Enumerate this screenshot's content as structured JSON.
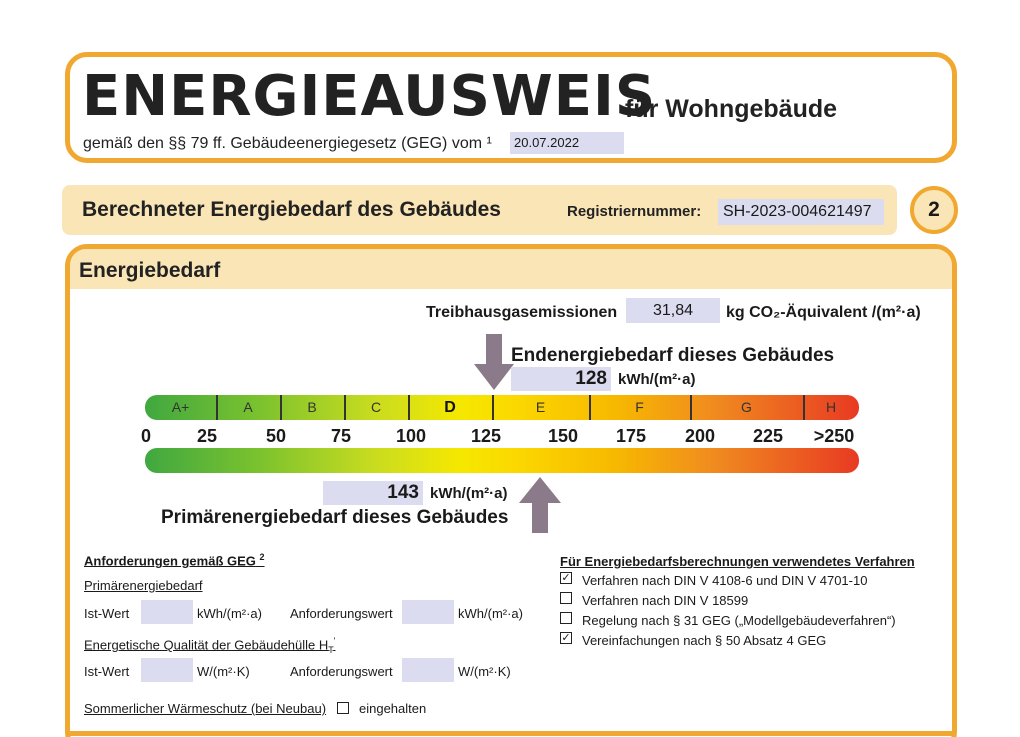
{
  "header": {
    "title": "ENERGIEAUSWEIS",
    "subtitle": "für Wohngebäude",
    "law_line": "gemäß den §§ 79 ff. Gebäudeenergiegesetz (GEG) vom ¹",
    "date": "20.07.2022"
  },
  "section": {
    "title": "Berechneter Energiebedarf des Gebäudes",
    "reg_label": "Registriernummer:",
    "reg_number": "SH-2023-004621497",
    "page_number": "2"
  },
  "panel": {
    "title": "Energiebedarf",
    "ghg_label": "Treibhausgasemissionen",
    "ghg_value": "31,84",
    "ghg_unit": "kg CO₂-Äquivalent /(m²·a)",
    "end_label": "Endenergiebedarf dieses Gebäudes",
    "end_value": "128",
    "end_unit": "kWh/(m²·a)",
    "primary_value": "143",
    "primary_unit": "kWh/(m²·a)",
    "primary_label": "Primärenergiebedarf dieses Gebäudes",
    "classes": [
      "A+",
      "A",
      "B",
      "C",
      "D",
      "E",
      "F",
      "G",
      "H"
    ],
    "active_class": "D",
    "ticks": [
      "0",
      "25",
      "50",
      "75",
      "100",
      "125",
      "150",
      "175",
      "200",
      "225",
      ">250"
    ]
  },
  "requirements": {
    "title": "Anforderungen gemäß GEG",
    "title_sup": "2",
    "pe_title": "Primärenergiebedarf",
    "ist_label": "Ist-Wert",
    "req_label": "Anforderungswert",
    "unit_kwh": "kWh/(m²·a)",
    "ht_title": "Energetische Qualität der Gebäudehülle H",
    "ht_sub": "T",
    "ht_sup": "'",
    "unit_w": "W/(m²·K)",
    "summer_label": "Sommerlicher Wärmeschutz (bei Neubau)",
    "summer_check": "eingehalten"
  },
  "methods": {
    "title": "Für Energiebedarfsberechnungen verwendetes Verfahren",
    "items": [
      {
        "label": "Verfahren nach DIN V 4108-6 und DIN V 4701-10",
        "checked": true
      },
      {
        "label": "Verfahren nach DIN V 18599",
        "checked": false
      },
      {
        "label": "Regelung nach § 31 GEG („Modellgebäudeverfahren“)",
        "checked": false
      },
      {
        "label": "Vereinfachungen nach § 50 Absatz 4 GEG",
        "checked": true
      }
    ]
  },
  "colors": {
    "frame": "#f0a830",
    "band": "#fae5b6",
    "field": "#dcdcf0",
    "arrow": "#8a7a8a"
  }
}
